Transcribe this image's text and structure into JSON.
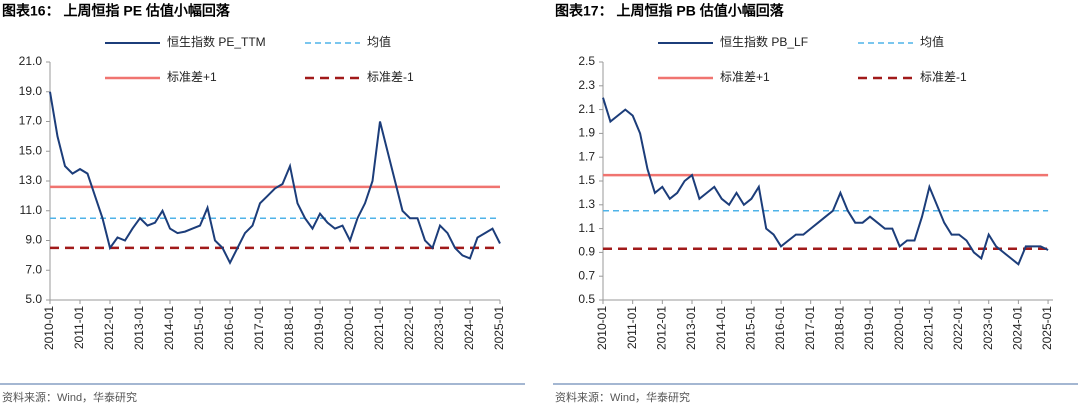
{
  "chart_data": [
    {
      "type": "line",
      "title": "图表16：  上周恒指 PE 估值小幅回落",
      "source": "资料来源：Wind，华泰研究",
      "x": [
        "2010-01",
        "2010-04",
        "2010-07",
        "2010-10",
        "2011-01",
        "2011-04",
        "2011-07",
        "2011-10",
        "2012-01",
        "2012-04",
        "2012-07",
        "2012-10",
        "2013-01",
        "2013-04",
        "2013-07",
        "2013-10",
        "2014-01",
        "2014-04",
        "2014-07",
        "2014-10",
        "2015-01",
        "2015-04",
        "2015-07",
        "2015-10",
        "2016-01",
        "2016-04",
        "2016-07",
        "2016-10",
        "2017-01",
        "2017-04",
        "2017-07",
        "2017-10",
        "2018-01",
        "2018-04",
        "2018-07",
        "2018-10",
        "2019-01",
        "2019-04",
        "2019-07",
        "2019-10",
        "2020-01",
        "2020-04",
        "2020-07",
        "2020-10",
        "2021-01",
        "2021-04",
        "2021-07",
        "2021-10",
        "2022-01",
        "2022-04",
        "2022-07",
        "2022-10",
        "2023-01",
        "2023-04",
        "2023-07",
        "2023-10",
        "2024-01",
        "2024-04",
        "2024-07",
        "2024-10",
        "2025-01"
      ],
      "xlim": [
        "2010-01",
        "2025-01"
      ],
      "xticks": [
        "2010-01",
        "2011-01",
        "2012-01",
        "2013-01",
        "2014-01",
        "2015-01",
        "2016-01",
        "2017-01",
        "2018-01",
        "2019-01",
        "2020-01",
        "2021-01",
        "2022-01",
        "2023-01",
        "2024-01",
        "2025-01"
      ],
      "ylim": [
        5,
        21
      ],
      "yticks": [
        {
          "value": 5,
          "label": "5.0"
        },
        {
          "value": 7,
          "label": "7.0"
        },
        {
          "value": 9,
          "label": "9.0"
        },
        {
          "value": 11,
          "label": "11.0"
        },
        {
          "value": 13,
          "label": "13.0"
        },
        {
          "value": 15,
          "label": "15.0"
        },
        {
          "value": 17,
          "label": "17.0"
        },
        {
          "value": 19,
          "label": "19.0"
        },
        {
          "value": 21,
          "label": "21.0"
        }
      ],
      "series": [
        {
          "name": "恒生指数 PE_TTM",
          "color": "#1c3d7a",
          "style": "solid",
          "values": [
            19.0,
            16.0,
            14.0,
            13.5,
            13.8,
            13.5,
            12.0,
            10.5,
            8.5,
            9.2,
            9.0,
            9.8,
            10.5,
            10.0,
            10.2,
            11.0,
            9.8,
            9.5,
            9.6,
            9.8,
            10.0,
            11.2,
            9.0,
            8.5,
            7.5,
            8.5,
            9.5,
            10.0,
            11.5,
            12.0,
            12.5,
            12.8,
            14.0,
            11.5,
            10.5,
            9.8,
            10.8,
            10.2,
            9.8,
            10.0,
            9.0,
            10.5,
            11.5,
            13.0,
            17.0,
            15.0,
            13.0,
            11.0,
            10.5,
            10.5,
            9.0,
            8.5,
            10.0,
            9.5,
            8.5,
            8.0,
            7.8,
            9.2,
            9.5,
            9.8,
            8.8
          ]
        },
        {
          "name": "均值",
          "color": "#4fb3e8",
          "style": "dashed",
          "values": [
            10.5,
            10.5,
            10.5,
            10.5,
            10.5,
            10.5,
            10.5,
            10.5,
            10.5,
            10.5,
            10.5,
            10.5,
            10.5,
            10.5,
            10.5,
            10.5,
            10.5,
            10.5,
            10.5,
            10.5,
            10.5,
            10.5,
            10.5,
            10.5,
            10.5,
            10.5,
            10.5,
            10.5,
            10.5,
            10.5,
            10.5,
            10.5,
            10.5,
            10.5,
            10.5,
            10.5,
            10.5,
            10.5,
            10.5,
            10.5,
            10.5,
            10.5,
            10.5,
            10.5,
            10.5,
            10.5,
            10.5,
            10.5,
            10.5,
            10.5,
            10.5,
            10.5,
            10.5,
            10.5,
            10.5,
            10.5,
            10.5,
            10.5,
            10.5,
            10.5,
            10.5
          ]
        },
        {
          "name": "标准差+1",
          "color": "#f07470",
          "style": "solid",
          "values": [
            12.6,
            12.6,
            12.6,
            12.6,
            12.6,
            12.6,
            12.6,
            12.6,
            12.6,
            12.6,
            12.6,
            12.6,
            12.6,
            12.6,
            12.6,
            12.6,
            12.6,
            12.6,
            12.6,
            12.6,
            12.6,
            12.6,
            12.6,
            12.6,
            12.6,
            12.6,
            12.6,
            12.6,
            12.6,
            12.6,
            12.6,
            12.6,
            12.6,
            12.6,
            12.6,
            12.6,
            12.6,
            12.6,
            12.6,
            12.6,
            12.6,
            12.6,
            12.6,
            12.6,
            12.6,
            12.6,
            12.6,
            12.6,
            12.6,
            12.6,
            12.6,
            12.6,
            12.6,
            12.6,
            12.6,
            12.6,
            12.6,
            12.6,
            12.6,
            12.6,
            12.6
          ]
        },
        {
          "name": "标准差-1",
          "color": "#a11a1a",
          "style": "dashed",
          "values": [
            8.5,
            8.5,
            8.5,
            8.5,
            8.5,
            8.5,
            8.5,
            8.5,
            8.5,
            8.5,
            8.5,
            8.5,
            8.5,
            8.5,
            8.5,
            8.5,
            8.5,
            8.5,
            8.5,
            8.5,
            8.5,
            8.5,
            8.5,
            8.5,
            8.5,
            8.5,
            8.5,
            8.5,
            8.5,
            8.5,
            8.5,
            8.5,
            8.5,
            8.5,
            8.5,
            8.5,
            8.5,
            8.5,
            8.5,
            8.5,
            8.5,
            8.5,
            8.5,
            8.5,
            8.5,
            8.5,
            8.5,
            8.5,
            8.5,
            8.5,
            8.5,
            8.5,
            8.5,
            8.5,
            8.5,
            8.5,
            8.5,
            8.5,
            8.5,
            8.5,
            8.5
          ]
        }
      ]
    },
    {
      "type": "line",
      "title": "图表17：  上周恒指 PB 估值小幅回落",
      "source": "资料来源：Wind，华泰研究",
      "x": [
        "2010-01",
        "2010-04",
        "2010-07",
        "2010-10",
        "2011-01",
        "2011-04",
        "2011-07",
        "2011-10",
        "2012-01",
        "2012-04",
        "2012-07",
        "2012-10",
        "2013-01",
        "2013-04",
        "2013-07",
        "2013-10",
        "2014-01",
        "2014-04",
        "2014-07",
        "2014-10",
        "2015-01",
        "2015-04",
        "2015-07",
        "2015-10",
        "2016-01",
        "2016-04",
        "2016-07",
        "2016-10",
        "2017-01",
        "2017-04",
        "2017-07",
        "2017-10",
        "2018-01",
        "2018-04",
        "2018-07",
        "2018-10",
        "2019-01",
        "2019-04",
        "2019-07",
        "2019-10",
        "2020-01",
        "2020-04",
        "2020-07",
        "2020-10",
        "2021-01",
        "2021-04",
        "2021-07",
        "2021-10",
        "2022-01",
        "2022-04",
        "2022-07",
        "2022-10",
        "2023-01",
        "2023-04",
        "2023-07",
        "2023-10",
        "2024-01",
        "2024-04",
        "2024-07",
        "2024-10",
        "2025-01"
      ],
      "xlim": [
        "2010-01",
        "2025-03"
      ],
      "xticks": [
        "2010-01",
        "2011-01",
        "2012-01",
        "2013-01",
        "2014-01",
        "2015-01",
        "2016-01",
        "2017-01",
        "2018-01",
        "2019-01",
        "2020-01",
        "2021-01",
        "2022-01",
        "2023-01",
        "2024-01",
        "2025-01"
      ],
      "ylim": [
        0.5,
        2.5
      ],
      "yticks": [
        0.5,
        0.7,
        0.9,
        1.1,
        1.3,
        1.5,
        1.7,
        1.9,
        2.1,
        2.3,
        2.5
      ],
      "series": [
        {
          "name": "恒生指数 PB_LF",
          "color": "#1c3d7a",
          "style": "solid",
          "values": [
            2.2,
            2.0,
            2.05,
            2.1,
            2.05,
            1.9,
            1.6,
            1.4,
            1.45,
            1.35,
            1.4,
            1.5,
            1.55,
            1.35,
            1.4,
            1.45,
            1.35,
            1.3,
            1.4,
            1.3,
            1.35,
            1.45,
            1.1,
            1.05,
            0.95,
            1.0,
            1.05,
            1.05,
            1.1,
            1.15,
            1.2,
            1.25,
            1.4,
            1.25,
            1.15,
            1.15,
            1.2,
            1.15,
            1.1,
            1.1,
            0.95,
            1.0,
            1.0,
            1.2,
            1.45,
            1.3,
            1.15,
            1.05,
            1.05,
            1.0,
            0.9,
            0.85,
            1.05,
            0.95,
            0.9,
            0.85,
            0.8,
            0.95,
            0.95,
            0.95,
            0.92
          ]
        },
        {
          "name": "均值",
          "color": "#4fb3e8",
          "style": "dashed",
          "values": [
            1.25,
            1.25,
            1.25,
            1.25,
            1.25,
            1.25,
            1.25,
            1.25,
            1.25,
            1.25,
            1.25,
            1.25,
            1.25,
            1.25,
            1.25,
            1.25,
            1.25,
            1.25,
            1.25,
            1.25,
            1.25,
            1.25,
            1.25,
            1.25,
            1.25,
            1.25,
            1.25,
            1.25,
            1.25,
            1.25,
            1.25,
            1.25,
            1.25,
            1.25,
            1.25,
            1.25,
            1.25,
            1.25,
            1.25,
            1.25,
            1.25,
            1.25,
            1.25,
            1.25,
            1.25,
            1.25,
            1.25,
            1.25,
            1.25,
            1.25,
            1.25,
            1.25,
            1.25,
            1.25,
            1.25,
            1.25,
            1.25,
            1.25,
            1.25,
            1.25,
            1.25
          ]
        },
        {
          "name": "标准差+1",
          "color": "#f07470",
          "style": "solid",
          "values": [
            1.55,
            1.55,
            1.55,
            1.55,
            1.55,
            1.55,
            1.55,
            1.55,
            1.55,
            1.55,
            1.55,
            1.55,
            1.55,
            1.55,
            1.55,
            1.55,
            1.55,
            1.55,
            1.55,
            1.55,
            1.55,
            1.55,
            1.55,
            1.55,
            1.55,
            1.55,
            1.55,
            1.55,
            1.55,
            1.55,
            1.55,
            1.55,
            1.55,
            1.55,
            1.55,
            1.55,
            1.55,
            1.55,
            1.55,
            1.55,
            1.55,
            1.55,
            1.55,
            1.55,
            1.55,
            1.55,
            1.55,
            1.55,
            1.55,
            1.55,
            1.55,
            1.55,
            1.55,
            1.55,
            1.55,
            1.55,
            1.55,
            1.55,
            1.55,
            1.55,
            1.55
          ]
        },
        {
          "name": "标准差-1",
          "color": "#a11a1a",
          "style": "dashed",
          "values": [
            0.93,
            0.93,
            0.93,
            0.93,
            0.93,
            0.93,
            0.93,
            0.93,
            0.93,
            0.93,
            0.93,
            0.93,
            0.93,
            0.93,
            0.93,
            0.93,
            0.93,
            0.93,
            0.93,
            0.93,
            0.93,
            0.93,
            0.93,
            0.93,
            0.93,
            0.93,
            0.93,
            0.93,
            0.93,
            0.93,
            0.93,
            0.93,
            0.93,
            0.93,
            0.93,
            0.93,
            0.93,
            0.93,
            0.93,
            0.93,
            0.93,
            0.93,
            0.93,
            0.93,
            0.93,
            0.93,
            0.93,
            0.93,
            0.93,
            0.93,
            0.93,
            0.93,
            0.93,
            0.93,
            0.93,
            0.93,
            0.93,
            0.93,
            0.93,
            0.93,
            0.93
          ]
        }
      ]
    }
  ]
}
